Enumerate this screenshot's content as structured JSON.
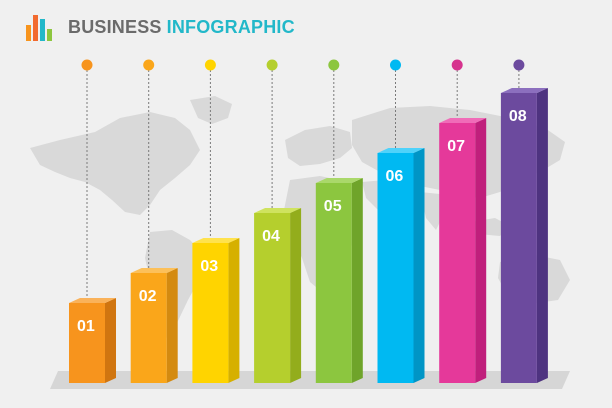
{
  "header": {
    "title_main": "BUSINESS",
    "title_accent": "INFOGRAPHIC",
    "logo_icon": "bar-chart-icon",
    "logo_colors": [
      "#f7941d",
      "#f26a2f",
      "#22b8c9",
      "#8dc63f"
    ]
  },
  "chart_data": {
    "type": "bar",
    "title": "",
    "xlabel": "",
    "ylabel": "",
    "categories": [
      "01",
      "02",
      "03",
      "04",
      "05",
      "06",
      "07",
      "08"
    ],
    "values": [
      1,
      2,
      3,
      4,
      5,
      6,
      7,
      8
    ],
    "colors": [
      "#f7941d",
      "#faa61a",
      "#ffd400",
      "#b5cf2d",
      "#8cc63f",
      "#00b9f2",
      "#e5399a",
      "#6c4a9e"
    ],
    "side_colors": [
      "#d07510",
      "#d48a10",
      "#d6b000",
      "#93ad1c",
      "#6fa42a",
      "#0095c6",
      "#c01f7c",
      "#4e3380"
    ],
    "top_colors": [
      "#fab25a",
      "#fcc05a",
      "#ffe24d",
      "#cfe35e",
      "#aad86a",
      "#4fd2fa",
      "#f06cb8",
      "#8c6fbe"
    ],
    "marker_colors": [
      "#f7941d",
      "#faa61a",
      "#ffd400",
      "#b5cf2d",
      "#8cc63f",
      "#00b9f2",
      "#d6338e",
      "#6c4a9e"
    ],
    "grid": false,
    "legend": "none",
    "background_map": "world-map"
  }
}
